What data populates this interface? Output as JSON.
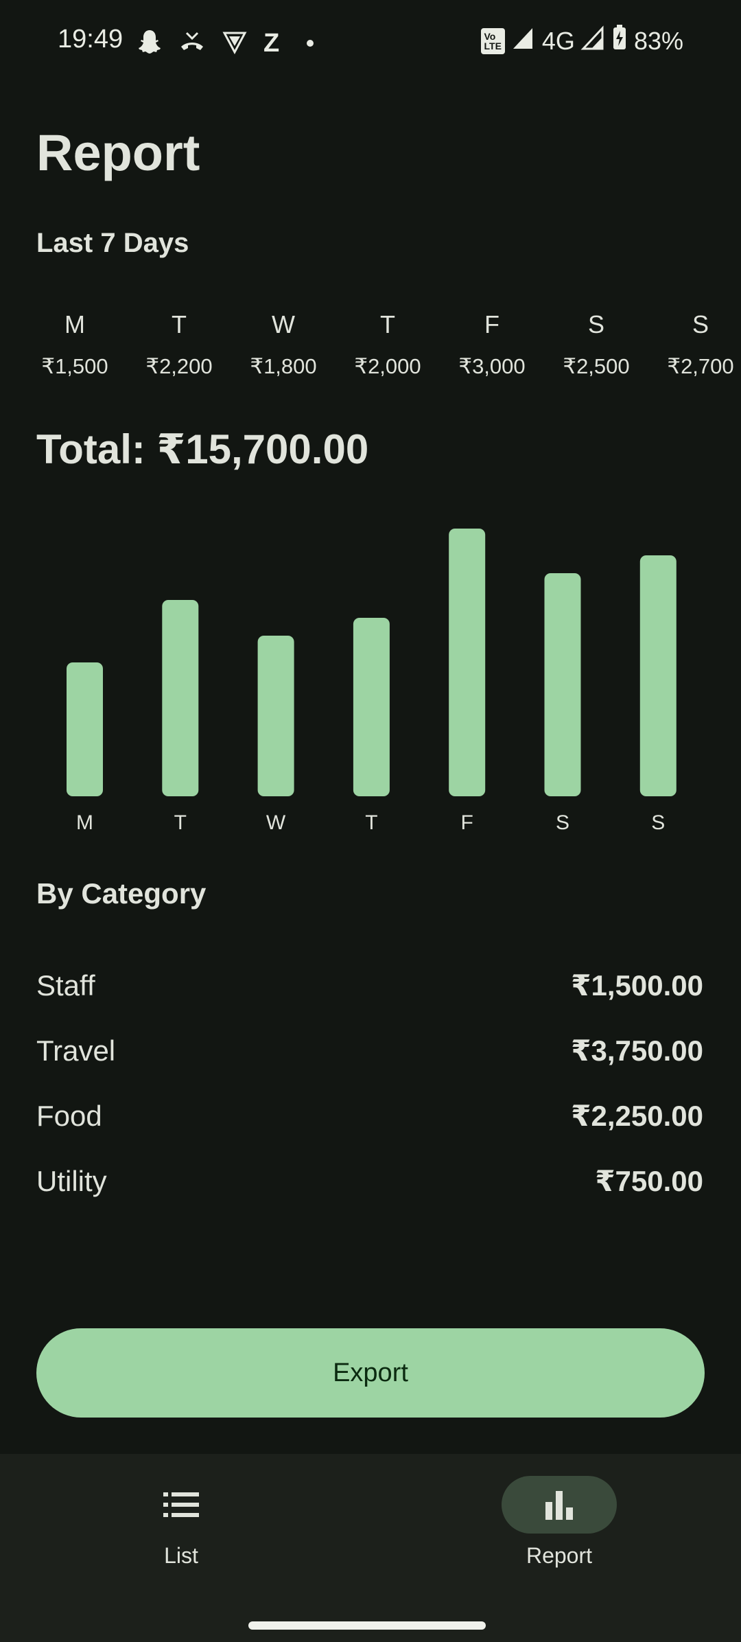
{
  "status_bar": {
    "time": "19:49",
    "network": "4G",
    "battery": "83%",
    "volte_top": "Vo",
    "volte_bottom": "LTE",
    "z_label": "Z"
  },
  "page": {
    "title": "Report",
    "last7_heading": "Last 7 Days",
    "total_label": "Total: ₹15,700.00",
    "category_heading": "By Category",
    "export_label": "Export"
  },
  "days": [
    {
      "letter": "M",
      "amount": "₹1,500"
    },
    {
      "letter": "T",
      "amount": "₹2,200"
    },
    {
      "letter": "W",
      "amount": "₹1,800"
    },
    {
      "letter": "T",
      "amount": "₹2,000"
    },
    {
      "letter": "F",
      "amount": "₹3,000"
    },
    {
      "letter": "S",
      "amount": "₹2,500"
    },
    {
      "letter": "S",
      "amount": "₹2,700"
    }
  ],
  "chart_data": {
    "type": "bar",
    "title": "",
    "categories": [
      "M",
      "T",
      "W",
      "T",
      "F",
      "S",
      "S"
    ],
    "values": [
      1500,
      2200,
      1800,
      2000,
      3000,
      2500,
      2700
    ],
    "xlabel": "",
    "ylabel": "",
    "ylim": [
      0,
      3000
    ],
    "grid": false,
    "color": "#9dd4a3"
  },
  "categories": [
    {
      "name": "Staff",
      "amount": "₹1,500.00"
    },
    {
      "name": "Travel",
      "amount": "₹3,750.00"
    },
    {
      "name": "Food",
      "amount": "₹2,250.00"
    },
    {
      "name": "Utility",
      "amount": "₹750.00"
    }
  ],
  "nav": {
    "list_label": "List",
    "report_label": "Report"
  },
  "colors": {
    "background": "#121612",
    "accent": "#9dd4a3",
    "nav_background": "#1c201b",
    "nav_active_pill": "#3a4a3b"
  }
}
